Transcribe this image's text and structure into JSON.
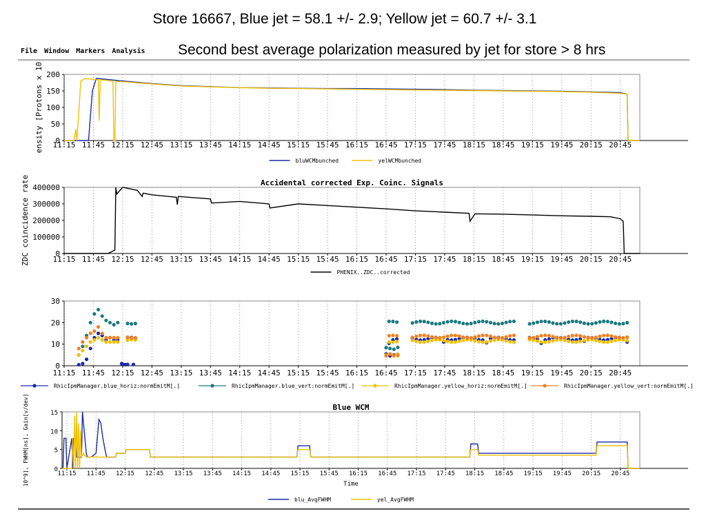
{
  "slide": {
    "title": "Store 16667, Blue jet = 58.1 +/- 2.9; Yellow jet = 60.7 +/- 3.1",
    "subtitle": "Second best average polarization measured by jet for store > 8 hrs"
  },
  "menu": {
    "items": [
      {
        "label": "File"
      },
      {
        "label": "Window"
      },
      {
        "label": "Markers"
      },
      {
        "label": "Analysis"
      }
    ]
  },
  "colors": {
    "blue": "#1a2aa8",
    "yellow": "#f0c000",
    "teal": "#1a7a80",
    "navy": "#1a2aa8",
    "gold": "#f0c000",
    "orange": "#f08020",
    "black": "#000000"
  },
  "chart_data": [
    {
      "type": "line",
      "title": "",
      "ylabel": "ensity [Protons x 10",
      "xlabel": "",
      "xlim": [
        "11:15",
        "21:05"
      ],
      "ylim": [
        0,
        200
      ],
      "yticks": [
        0,
        50,
        100,
        150,
        200
      ],
      "xticks": [
        "11:15",
        "11:45",
        "12:15",
        "12:45",
        "13:15",
        "13:45",
        "14:15",
        "14:45",
        "15:15",
        "15:45",
        "16:15",
        "16:45",
        "17:15",
        "17:45",
        "18:15",
        "18:45",
        "19:15",
        "19:45",
        "20:15",
        "20:45"
      ],
      "legend": "bottom-center",
      "series": [
        {
          "name": "bluWCMbunched",
          "color": "blue",
          "x": [
            "11:15",
            "11:35",
            "11:40",
            "11:44",
            "11:48",
            "11:55",
            "12:15",
            "12:45",
            "13:15",
            "13:45",
            "14:15",
            "14:45",
            "15:15",
            "15:45",
            "16:15",
            "16:45",
            "17:15",
            "17:45",
            "18:15",
            "18:45",
            "19:15",
            "19:45",
            "20:15",
            "20:45",
            "20:52",
            "20:53",
            "21:05"
          ],
          "values": [
            0,
            0,
            0,
            150,
            188,
            186,
            180,
            172,
            166,
            163,
            160,
            159,
            158,
            157,
            157,
            156,
            155,
            154,
            152,
            151,
            150,
            149,
            147,
            145,
            140,
            0,
            0
          ]
        },
        {
          "name": "yelWCMbunched",
          "color": "yellow",
          "x": [
            "11:15",
            "11:25",
            "11:27",
            "11:28",
            "11:30",
            "11:32",
            "11:37",
            "11:40",
            "11:45",
            "11:50",
            "11:51",
            "11:52",
            "11:55",
            "12:00",
            "12:05",
            "12:06",
            "12:07",
            "12:08",
            "12:15",
            "12:45",
            "13:15",
            "13:45",
            "14:15",
            "14:45",
            "15:15",
            "15:45",
            "16:15",
            "16:45",
            "17:15",
            "17:45",
            "18:15",
            "18:45",
            "19:15",
            "19:45",
            "20:15",
            "20:45",
            "20:52",
            "20:53",
            "21:05"
          ],
          "values": [
            0,
            0,
            35,
            0,
            80,
            180,
            188,
            186,
            185,
            184,
            60,
            184,
            183,
            181,
            180,
            0,
            0,
            179,
            178,
            171,
            165,
            162,
            160,
            158,
            157,
            156,
            155,
            154,
            153,
            152,
            151,
            150,
            149,
            148,
            146,
            143,
            140,
            0,
            0
          ]
        }
      ]
    },
    {
      "type": "line",
      "title": "Accidental corrected Exp. Coinc. Signals",
      "ylabel": "ZDC coincidence rate",
      "xlabel": "",
      "xlim": [
        "11:15",
        "21:05"
      ],
      "ylim": [
        0,
        400000
      ],
      "yticks": [
        0,
        100000,
        200000,
        300000,
        400000
      ],
      "xticks": [
        "11:15",
        "11:45",
        "12:15",
        "12:45",
        "13:15",
        "13:45",
        "14:15",
        "14:45",
        "15:15",
        "15:45",
        "16:15",
        "16:45",
        "17:15",
        "17:45",
        "18:15",
        "18:45",
        "19:15",
        "19:45",
        "20:15",
        "20:45"
      ],
      "legend": "bottom-center",
      "series": [
        {
          "name": "PHENIX..ZDC..corrected",
          "color": "black",
          "x": [
            "11:15",
            "12:00",
            "12:05",
            "12:07",
            "12:08",
            "12:09",
            "12:15",
            "12:30",
            "12:35",
            "12:36",
            "12:45",
            "13:10",
            "13:11",
            "13:12",
            "13:45",
            "13:46",
            "14:15",
            "14:45",
            "14:46",
            "15:15",
            "15:45",
            "16:15",
            "16:45",
            "17:15",
            "17:45",
            "18:10",
            "18:11",
            "18:15",
            "18:16",
            "18:45",
            "19:15",
            "19:45",
            "20:15",
            "20:35",
            "20:45",
            "20:48",
            "20:49",
            "21:05"
          ],
          "values": [
            0,
            0,
            15000,
            20000,
            400000,
            360000,
            400000,
            382000,
            345000,
            365000,
            355000,
            340000,
            295000,
            345000,
            330000,
            305000,
            315000,
            300000,
            275000,
            300000,
            290000,
            280000,
            270000,
            258000,
            250000,
            243000,
            195000,
            230000,
            240000,
            238000,
            233000,
            228000,
            225000,
            222000,
            210000,
            195000,
            0,
            0
          ]
        }
      ]
    },
    {
      "type": "scatter",
      "title": "",
      "ylabel": "",
      "xlabel": "",
      "xlim": [
        "11:15",
        "21:05"
      ],
      "ylim": [
        0,
        30
      ],
      "yticks": [
        0,
        10,
        20,
        30
      ],
      "xticks": [
        "11:15",
        "11:45",
        "12:15",
        "12:45",
        "13:15",
        "13:45",
        "14:15",
        "14:45",
        "15:15",
        "15:45",
        "16:15",
        "16:45",
        "17:15",
        "17:45",
        "18:15",
        "18:45",
        "19:15",
        "19:45",
        "20:15",
        "20:45"
      ],
      "legend": "bottom",
      "gaps": [
        [
          "12:30",
          "16:45"
        ],
        [
          "16:58",
          "17:10"
        ],
        [
          "18:58",
          "19:12"
        ]
      ],
      "series": [
        {
          "name": "RhicIpmManager.blue_horiz:normEmitM[.]",
          "color": "navy",
          "level": 12.5,
          "x": [
            "11:30",
            "11:34",
            "11:38",
            "11:42",
            "11:46",
            "11:50",
            "11:54",
            "11:58",
            "12:02",
            "12:06",
            "12:10",
            "12:14",
            "12:18"
          ],
          "values": [
            0.5,
            1,
            3,
            8,
            13,
            15,
            14,
            12,
            13,
            12,
            12,
            1,
            0.5
          ]
        },
        {
          "name": "RhicIpmManager.blue_vert:normEmitM[.]",
          "color": "teal",
          "level": 20,
          "x": [
            "11:30",
            "11:34",
            "11:38",
            "11:42",
            "11:46",
            "11:50",
            "11:54",
            "11:58",
            "12:02",
            "12:06",
            "12:10"
          ],
          "values": [
            5,
            9,
            14,
            20,
            24,
            26,
            23,
            21,
            20,
            19,
            20
          ]
        },
        {
          "name": "RhicIpmManager.yellow_horiz:normEmitM[.]",
          "color": "gold",
          "level": 11.5,
          "x": [
            "11:30",
            "11:34",
            "11:38",
            "11:42",
            "11:46",
            "11:50",
            "11:54",
            "11:58",
            "12:02",
            "12:06",
            "12:10"
          ],
          "values": [
            5,
            7,
            9,
            11,
            12,
            13,
            12,
            11,
            11,
            11,
            11
          ]
        },
        {
          "name": "RhicIpmManager.yellow_vert:normEmitM[.]",
          "color": "orange",
          "level": 13.5,
          "x": [
            "11:30",
            "11:34",
            "11:38",
            "11:42",
            "11:46",
            "11:50",
            "11:54",
            "11:58",
            "12:02",
            "12:06",
            "12:10"
          ],
          "values": [
            8,
            11,
            13,
            15,
            16,
            18,
            15,
            13,
            13,
            13,
            13
          ]
        }
      ]
    },
    {
      "type": "line",
      "title": "Blue WCM",
      "ylabel": "10^9], FWHM[ns], Gain[v/dev]",
      "xlabel": "Time",
      "xlim": [
        "11:10",
        "21:05"
      ],
      "ylim": [
        0,
        15
      ],
      "yticks": [
        0,
        5,
        10,
        15
      ],
      "xticks": [
        "11:15",
        "11:45",
        "12:15",
        "12:45",
        "13:15",
        "13:45",
        "14:15",
        "14:45",
        "15:15",
        "15:45",
        "16:15",
        "16:45",
        "17:15",
        "17:45",
        "18:15",
        "18:45",
        "19:15",
        "19:45",
        "20:15",
        "20:45"
      ],
      "legend": "bottom-center",
      "series": [
        {
          "name": "blu_AvgFWHM",
          "color": "blue",
          "x": [
            "11:10",
            "11:11",
            "11:12",
            "11:14",
            "11:15",
            "11:20",
            "11:21",
            "11:22",
            "11:24",
            "11:25",
            "11:30",
            "11:31",
            "11:35",
            "11:36",
            "11:40",
            "11:45",
            "11:48",
            "11:50",
            "11:52",
            "11:55",
            "11:56",
            "12:00",
            "12:05",
            "12:06",
            "12:15",
            "12:16",
            "12:40",
            "12:41",
            "15:12",
            "15:13",
            "15:25",
            "15:26",
            "18:10",
            "18:11",
            "18:18",
            "18:19",
            "20:20",
            "20:21",
            "20:52",
            "20:53",
            "21:05"
          ],
          "values": [
            0,
            0,
            8,
            8,
            0,
            8,
            0,
            8,
            8,
            3,
            3,
            15,
            4,
            3,
            3,
            4,
            13,
            12,
            8,
            4,
            3,
            3,
            3,
            4,
            4,
            5,
            5,
            3,
            3,
            6,
            6,
            3,
            3,
            6.5,
            6.5,
            4,
            4,
            7,
            7,
            0,
            0
          ]
        },
        {
          "name": "yel_AvgFWHM",
          "color": "yellow",
          "x": [
            "11:10",
            "11:20",
            "11:21",
            "11:22",
            "11:23",
            "11:24",
            "11:25",
            "11:26",
            "11:27",
            "11:28",
            "11:29",
            "11:30",
            "11:32",
            "11:35",
            "11:45",
            "11:50",
            "12:05",
            "12:06",
            "12:15",
            "12:16",
            "12:40",
            "12:41",
            "15:12",
            "15:13",
            "15:25",
            "15:26",
            "18:10",
            "18:11",
            "18:18",
            "18:19",
            "20:20",
            "20:21",
            "20:52",
            "20:53",
            "21:05"
          ],
          "values": [
            0,
            0,
            8,
            0,
            14,
            0,
            15,
            0,
            12,
            0,
            10,
            3,
            4,
            3,
            3,
            3,
            3,
            4,
            4,
            5,
            5,
            3,
            3,
            5,
            5,
            3,
            3,
            5,
            5,
            3.5,
            3.5,
            6,
            6,
            0,
            0
          ]
        }
      ]
    }
  ]
}
